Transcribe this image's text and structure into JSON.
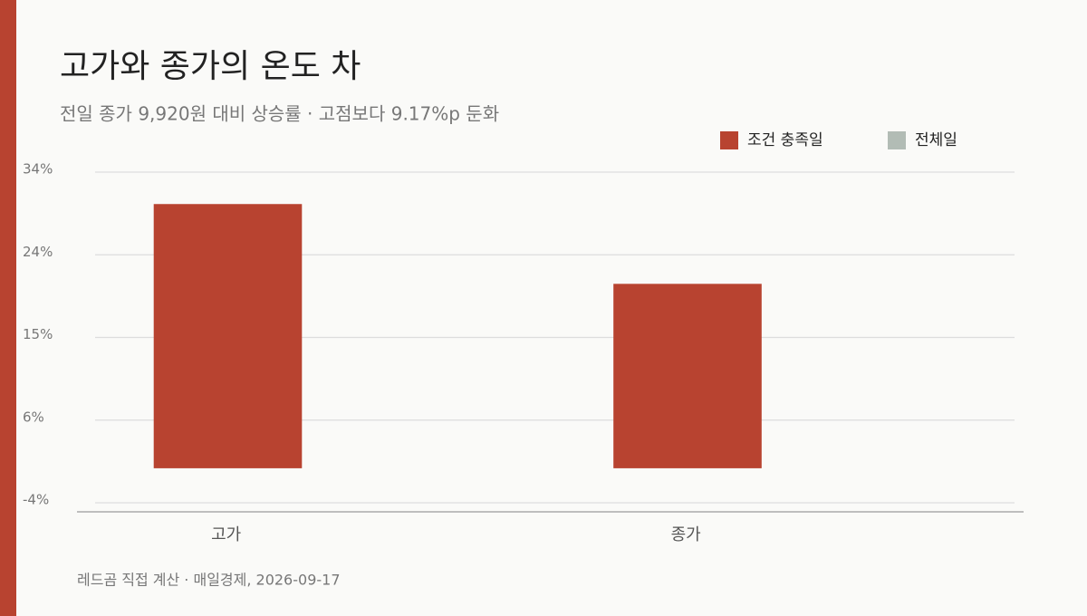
{
  "chart_data": {
    "type": "bar",
    "title": "고가와 종가의 온도 차",
    "subtitle": "전일 종가 9,920원 대비 상승률 · 고점보다 9.17%p 둔화",
    "source": "레드곰 직접 계산 ·  매일경제, 2026-09-17",
    "categories": [
      "고가",
      "종가"
    ],
    "series": [
      {
        "name": "조건 충족일",
        "color": "#b84330",
        "values": [
          30.3,
          21.13
        ]
      },
      {
        "name": "전체일",
        "color": "#b2bcb5",
        "values": [
          0,
          0
        ]
      }
    ],
    "ylim": [
      -4,
      34
    ],
    "yticks": [
      {
        "value": -4,
        "label": "-4%"
      },
      {
        "value": 5.5,
        "label": "6%"
      },
      {
        "value": 15,
        "label": "15%"
      },
      {
        "value": 24.5,
        "label": "24%"
      },
      {
        "value": 34,
        "label": "34%"
      }
    ],
    "grid": true,
    "legend": "top-right"
  }
}
